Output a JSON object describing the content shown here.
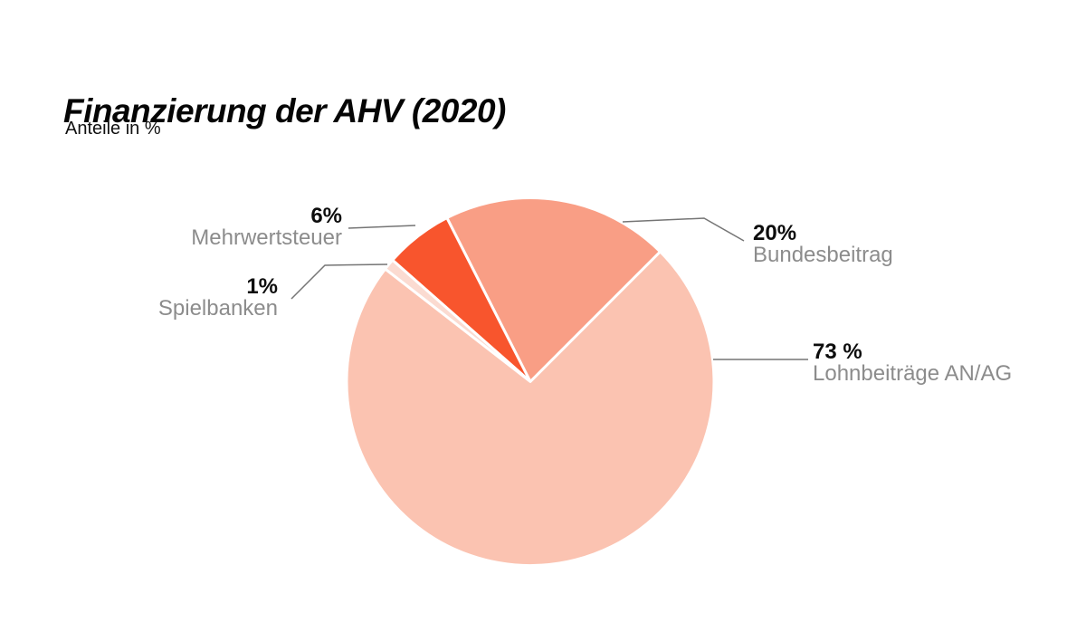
{
  "header": {
    "title": "Finanzierung der AHV (2020)",
    "subtitle": "Anteile in %"
  },
  "chart_data": {
    "type": "pie",
    "title": "Finanzierung der AHV (2020)",
    "subtitle": "Anteile in %",
    "unit": "%",
    "start_angle_deg": 45,
    "direction": "counterclockwise",
    "slices": [
      {
        "label": "Bundesbeitrag",
        "value": 20,
        "value_label": "20%",
        "color": "#F99E85"
      },
      {
        "label": "Mehrwertsteuer",
        "value": 6,
        "value_label": "6%",
        "color": "#F8552D"
      },
      {
        "label": "Spielbanken",
        "value": 1,
        "value_label": "1%",
        "color": "#FBDBD1"
      },
      {
        "label": "Lohnbeiträge AN/AG",
        "value": 73,
        "value_label": "73 %",
        "color": "#FBC3B1"
      }
    ],
    "separator_color": "#FFFFFF",
    "leader_line_color": "#757575",
    "value_text_color": "#0D0D0D",
    "label_text_color": "#8C8C8C",
    "legend_position": "callouts"
  }
}
